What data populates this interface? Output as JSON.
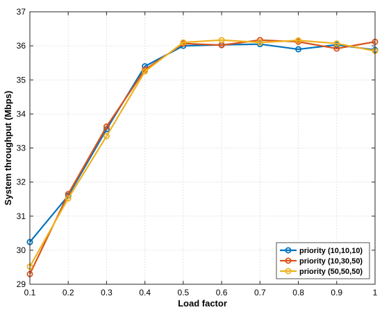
{
  "chart_data": {
    "type": "line",
    "xlabel": "Load factor",
    "ylabel": "System throughput (Mbps)",
    "xlim": [
      0.1,
      1
    ],
    "ylim": [
      29,
      37
    ],
    "x_ticks": [
      "0.1",
      "0.2",
      "0.3",
      "0.4",
      "0.5",
      "0.6",
      "0.7",
      "0.8",
      "0.9",
      "1"
    ],
    "y_ticks": [
      "29",
      "30",
      "31",
      "32",
      "33",
      "34",
      "35",
      "36",
      "37"
    ],
    "grid": true,
    "legend_position": "bottom-right",
    "marker": "open-circle",
    "x": [
      0.1,
      0.2,
      0.3,
      0.4,
      0.5,
      0.6,
      0.7,
      0.8,
      0.9,
      1.0
    ],
    "series": [
      {
        "name": "priority (10,10,10)",
        "color": "#0072BD",
        "values": [
          30.24,
          31.6,
          33.55,
          35.4,
          36.0,
          36.03,
          36.05,
          35.9,
          36.03,
          35.88
        ]
      },
      {
        "name": "priority (10,30,50)",
        "color": "#D95319",
        "values": [
          29.3,
          31.65,
          33.63,
          35.3,
          36.07,
          36.02,
          36.17,
          36.12,
          35.92,
          36.12
        ]
      },
      {
        "name": "priority (50,50,50)",
        "color": "#EDB120",
        "values": [
          29.52,
          31.52,
          33.35,
          35.25,
          36.1,
          36.17,
          36.1,
          36.16,
          36.07,
          35.85
        ]
      }
    ]
  }
}
